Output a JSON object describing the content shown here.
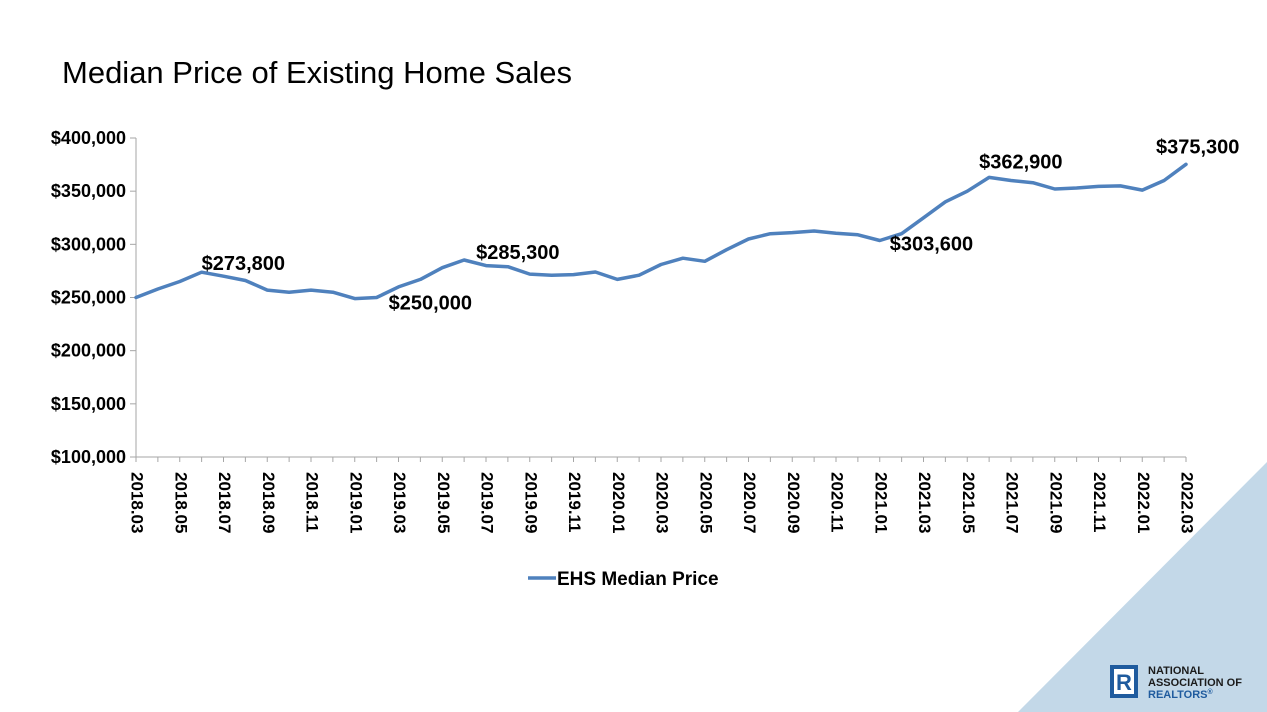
{
  "chart_data": {
    "type": "line",
    "title": "Median Price of Existing Home Sales",
    "xlabel": "",
    "ylabel": "",
    "ylim": [
      100000,
      400000
    ],
    "ytick_labels": [
      "$100,000",
      "$150,000",
      "$200,000",
      "$250,000",
      "$300,000",
      "$350,000",
      "$400,000"
    ],
    "ytick_values": [
      100000,
      150000,
      200000,
      250000,
      300000,
      350000,
      400000
    ],
    "x": [
      "2018.03",
      "2018.04",
      "2018.05",
      "2018.06",
      "2018.07",
      "2018.08",
      "2018.09",
      "2018.10",
      "2018.11",
      "2018.12",
      "2019.01",
      "2019.02",
      "2019.03",
      "2019.04",
      "2019.05",
      "2019.06",
      "2019.07",
      "2019.08",
      "2019.09",
      "2019.10",
      "2019.11",
      "2019.12",
      "2020.01",
      "2020.02",
      "2020.03",
      "2020.04",
      "2020.05",
      "2020.06",
      "2020.07",
      "2020.08",
      "2020.09",
      "2020.10",
      "2020.11",
      "2020.12",
      "2021.01",
      "2021.02",
      "2021.03",
      "2021.04",
      "2021.05",
      "2021.06",
      "2021.07",
      "2021.08",
      "2021.09",
      "2021.10",
      "2021.11",
      "2021.12",
      "2022.01",
      "2022.02",
      "2022.03"
    ],
    "xtick_labels": [
      "2018.03",
      "2018.05",
      "2018.07",
      "2018.09",
      "2018.11",
      "2019.01",
      "2019.03",
      "2019.05",
      "2019.07",
      "2019.09",
      "2019.11",
      "2020.01",
      "2020.03",
      "2020.05",
      "2020.07",
      "2020.09",
      "2020.11",
      "2021.01",
      "2021.03",
      "2021.05",
      "2021.07",
      "2021.09",
      "2021.11",
      "2022.01",
      "2022.03"
    ],
    "series": [
      {
        "name": "EHS Median Price",
        "color": "#4f81bd",
        "values": [
          250000,
          258000,
          265000,
          273800,
          270000,
          266000,
          257000,
          255000,
          257000,
          255000,
          249000,
          250000,
          260000,
          267000,
          278000,
          285300,
          280000,
          279000,
          272000,
          271000,
          271500,
          274000,
          267000,
          271000,
          281000,
          287000,
          284000,
          295000,
          305000,
          310000,
          311000,
          312500,
          310500,
          309000,
          303600,
          310000,
          325000,
          340000,
          350000,
          362900,
          360000,
          358000,
          352000,
          353000,
          354500,
          355000,
          351000,
          360000,
          375300
        ]
      }
    ],
    "data_labels": [
      {
        "index": 3,
        "text": "$273,800"
      },
      {
        "index": 11,
        "text": "$250,000"
      },
      {
        "index": 15,
        "text": "$285,300"
      },
      {
        "index": 34,
        "text": "$303,600"
      },
      {
        "index": 39,
        "text": "$362,900"
      },
      {
        "index": 48,
        "text": "$375,300"
      }
    ],
    "legend_position": "bottom",
    "grid": false
  },
  "logo": {
    "line1": "NATIONAL",
    "line2": "ASSOCIATION OF",
    "line3": "REALTORS",
    "mark": "R",
    "registered": "®"
  },
  "colors": {
    "line": "#4f81bd",
    "axis": "#a6a6a6",
    "corner_triangle": "#c3d8e8",
    "logo_blue": "#1f5b9e"
  },
  "icons": [
    "realtor-r-logo-icon"
  ]
}
